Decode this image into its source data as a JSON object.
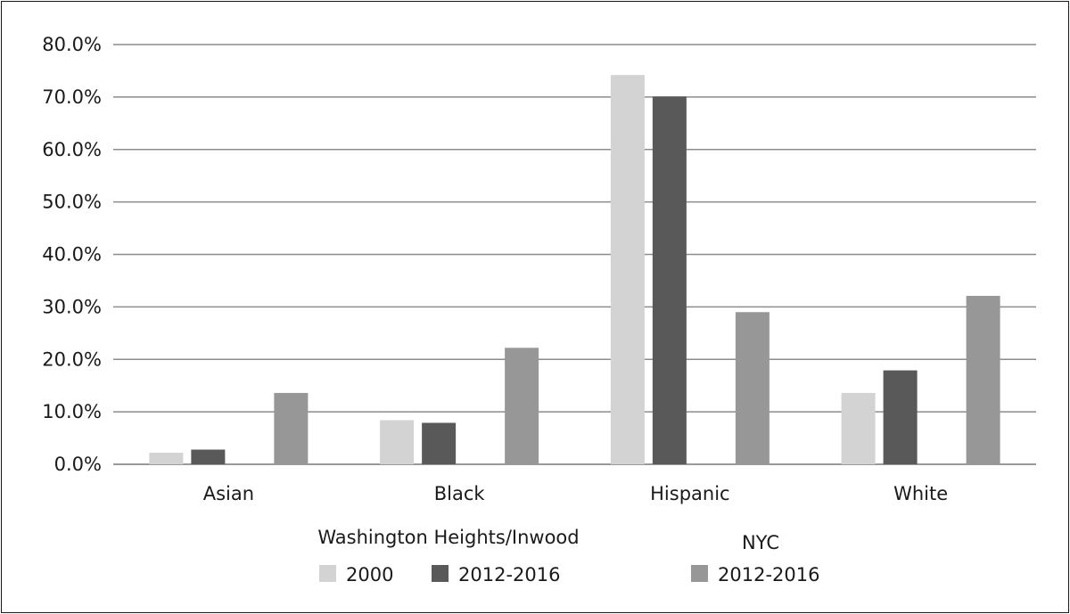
{
  "chart_data": {
    "type": "bar",
    "categories": [
      "Asian",
      "Black",
      "Hispanic",
      "White"
    ],
    "series": [
      {
        "name": "2000",
        "group": "Washington Heights/Inwood",
        "color": "#d3d3d3",
        "values": [
          2.2,
          8.4,
          74.2,
          13.6
        ]
      },
      {
        "name": "2012-2016",
        "group": "Washington Heights/Inwood",
        "color": "#595959",
        "values": [
          2.8,
          7.9,
          70.1,
          17.9
        ]
      },
      {
        "name": "2012-2016",
        "group": "NYC",
        "color": "#979797",
        "values": [
          13.6,
          22.2,
          29.0,
          32.1
        ]
      }
    ],
    "ylim": [
      0,
      80
    ],
    "ytick_values": [
      0,
      10,
      20,
      30,
      40,
      50,
      60,
      70,
      80
    ],
    "ytick_labels": [
      "0.0%",
      "10.0%",
      "20.0%",
      "30.0%",
      "40.0%",
      "50.0%",
      "60.0%",
      "70.0%",
      "80.0%"
    ],
    "grid": true,
    "legend": {
      "placement": "bottom",
      "groups": [
        "Washington Heights/Inwood",
        "NYC"
      ]
    },
    "colors": {
      "grid": "#8c8c8c",
      "axis": "#8c8c8c",
      "text": "#1a1a1a"
    }
  }
}
